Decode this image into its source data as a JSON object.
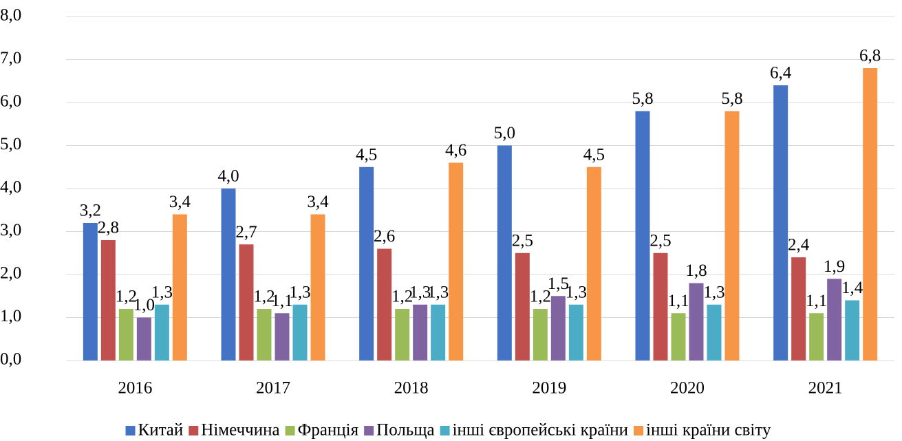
{
  "chart_data": {
    "type": "bar",
    "categories": [
      "2016",
      "2017",
      "2018",
      "2019",
      "2020",
      "2021"
    ],
    "series": [
      {
        "name": "Китай",
        "color": "#4472c4",
        "values": [
          3.2,
          4.0,
          4.5,
          5.0,
          5.8,
          6.4
        ],
        "value_labels": [
          "3,2",
          "4,0",
          "4,5",
          "5,0",
          "5,8",
          "6,4"
        ]
      },
      {
        "name": "Німеччина",
        "color": "#c0504d",
        "values": [
          2.8,
          2.7,
          2.6,
          2.5,
          2.5,
          2.4
        ],
        "value_labels": [
          "2,8",
          "2,7",
          "2,6",
          "2,5",
          "2,5",
          "2,4"
        ]
      },
      {
        "name": "Франція",
        "color": "#9bbb59",
        "values": [
          1.2,
          1.2,
          1.2,
          1.2,
          1.1,
          1.1
        ],
        "value_labels": [
          "1,2",
          "1,2",
          "1,2",
          "1,2",
          "1,1",
          "1,1"
        ]
      },
      {
        "name": "Польща",
        "color": "#8064a2",
        "values": [
          1.0,
          1.1,
          1.3,
          1.5,
          1.8,
          1.9
        ],
        "value_labels": [
          "1,0",
          "1,1",
          "1,3",
          "1,5",
          "1,8",
          "1,9"
        ]
      },
      {
        "name": "інші європейські країни",
        "color": "#4bacc6",
        "values": [
          1.3,
          1.3,
          1.3,
          1.3,
          1.3,
          1.4
        ],
        "value_labels": [
          "1,3",
          "1,3",
          "1,3",
          "1,3",
          "1,3",
          "1,4"
        ]
      },
      {
        "name": "інші країни світу",
        "color": "#f79646",
        "values": [
          3.4,
          3.4,
          4.6,
          4.5,
          5.8,
          6.8
        ],
        "value_labels": [
          "3,4",
          "3,4",
          "4,6",
          "4,5",
          "5,8",
          "6,8"
        ]
      }
    ],
    "ylim": [
      0,
      8
    ],
    "yticks": [
      {
        "value": 0,
        "label": "0,0"
      },
      {
        "value": 1,
        "label": "1,0"
      },
      {
        "value": 2,
        "label": "2,0"
      },
      {
        "value": 3,
        "label": "3,0"
      },
      {
        "value": 4,
        "label": "4,0"
      },
      {
        "value": 5,
        "label": "5,0"
      },
      {
        "value": 6,
        "label": "6,0"
      },
      {
        "value": 7,
        "label": "7,0"
      },
      {
        "value": 8,
        "label": "8,0"
      }
    ],
    "grid": true,
    "legend": "bottom"
  }
}
